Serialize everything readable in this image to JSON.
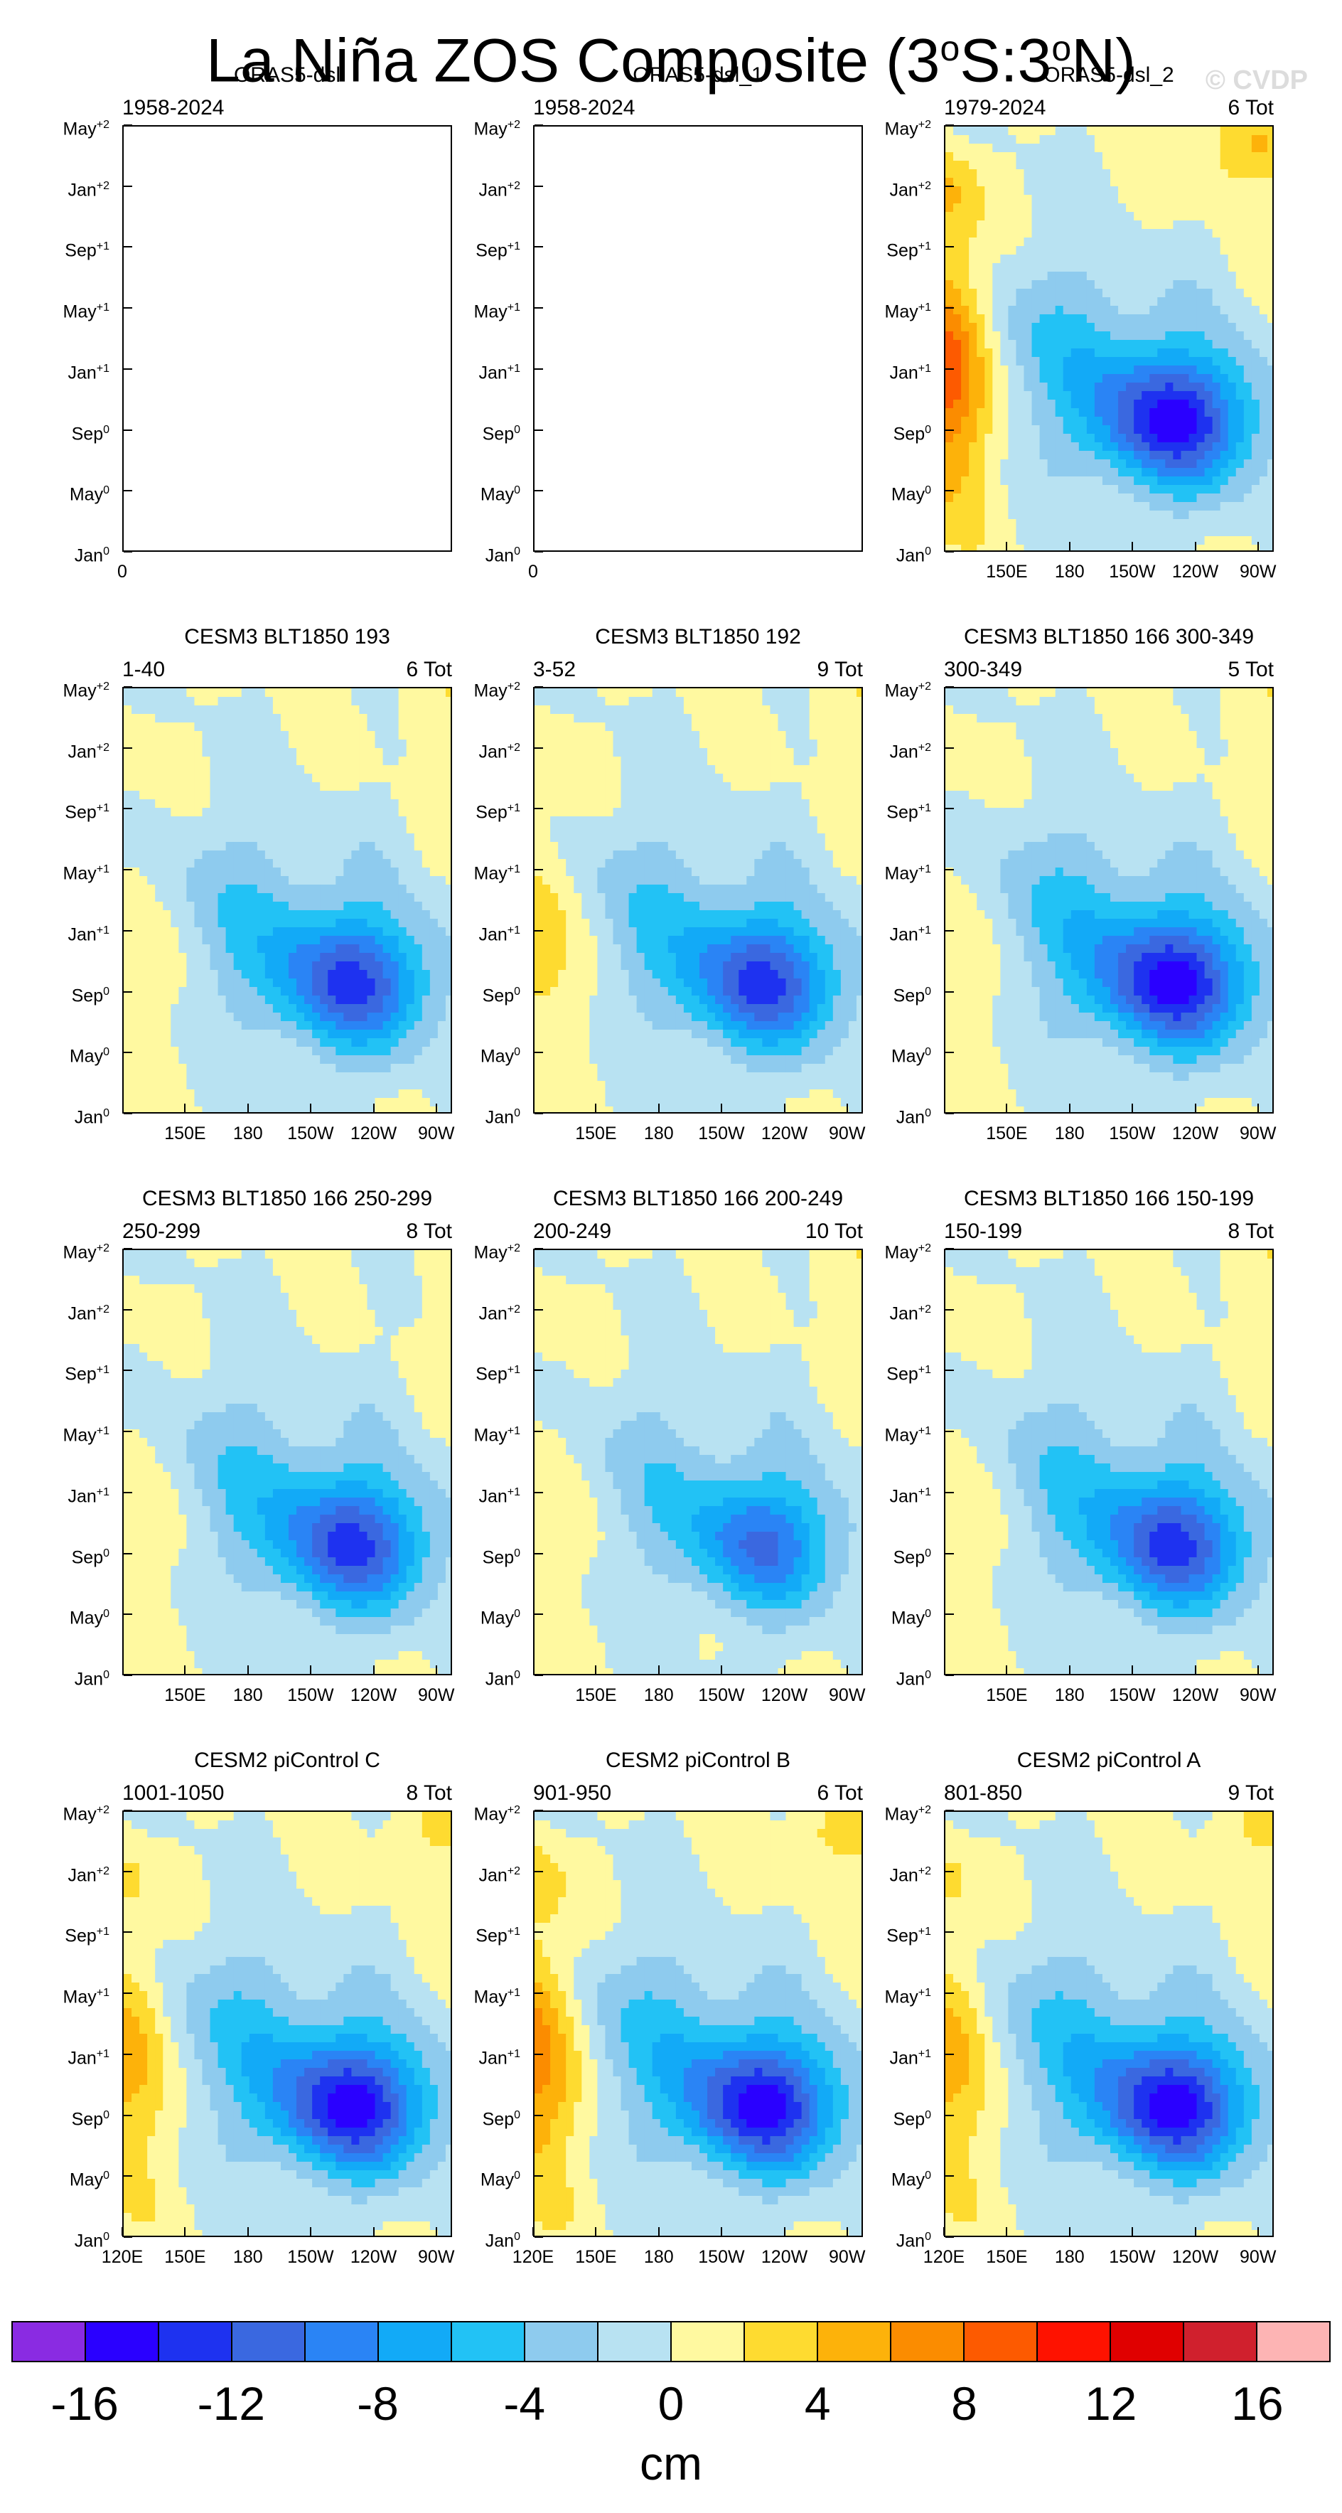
{
  "page": {
    "title": "La Niña ZOS Composite (3",
    "title_sup1": "o",
    "title_mid": "S:3",
    "title_sup2": "o",
    "title_end": "N)",
    "watermark": "© CVDP"
  },
  "colors": {
    "levels": [
      "#8a2be2",
      "#2a00ff",
      "#1e32f0",
      "#3a68e0",
      "#2a84f5",
      "#12aaf7",
      "#22c2f5",
      "#8ecbee",
      "#b8e2f2",
      "#fff9a0",
      "#fedb30",
      "#fdb20a",
      "#fb8c00",
      "#fd5a00",
      "#fe1200",
      "#e00000",
      "#d0202d",
      "#fdb4b4"
    ]
  },
  "axes": {
    "y_ticks": [
      {
        "base": "Jan",
        "sup": "0"
      },
      {
        "base": "May",
        "sup": "0"
      },
      {
        "base": "Sep",
        "sup": "0"
      },
      {
        "base": "Jan",
        "sup": "+1"
      },
      {
        "base": "May",
        "sup": "+1"
      },
      {
        "base": "Sep",
        "sup": "+1"
      },
      {
        "base": "Jan",
        "sup": "+2"
      },
      {
        "base": "May",
        "sup": "+2"
      }
    ],
    "x_ticks_inner": [
      "150E",
      "180",
      "150W",
      "120W",
      "90W"
    ],
    "x_ticks_bottom": [
      "120E",
      "150E",
      "180",
      "150W",
      "120W",
      "90W"
    ],
    "empty_x_label": "0"
  },
  "chart_data": {
    "type": "heatmap",
    "title": "La Niña ZOS Composite (3°S:3°N)",
    "x_axis": "longitude 120E–80W",
    "y_axis": "month Jan0 – May+2",
    "units": "cm",
    "colorbar": {
      "levels": [
        -16,
        -14,
        -12,
        -10,
        -8,
        -6,
        -4,
        -2,
        0,
        2,
        4,
        6,
        8,
        10,
        12,
        14,
        16
      ],
      "labels": [
        "-16",
        "-12",
        "-8",
        "-4",
        "0",
        "4",
        "8",
        "12",
        "16"
      ],
      "units_label": "cm"
    },
    "panels": [
      {
        "title": "ORAS5-dsl",
        "left": "1958-2024",
        "right": "",
        "empty": true,
        "bottom": false
      },
      {
        "title": "ORAS5-dsl_1",
        "left": "1958-2024",
        "right": "",
        "empty": true,
        "bottom": false
      },
      {
        "title": "ORAS5-dsl_2",
        "left": "1979-2024",
        "right": "6 Tot",
        "empty": false,
        "bottom": false,
        "min": -12,
        "max": 11,
        "west": 10
      },
      {
        "title": "CESM3 BLT1850 193",
        "left": "1-40",
        "right": "6 Tot",
        "empty": false,
        "bottom": false,
        "min": -10,
        "max": 4,
        "west": 2
      },
      {
        "title": "CESM3 BLT1850 192",
        "left": "3-52",
        "right": "9 Tot",
        "empty": false,
        "bottom": false,
        "min": -10,
        "max": 4,
        "west": 4
      },
      {
        "title": "CESM3 BLT1850 166 300-349",
        "left": "300-349",
        "right": "5 Tot",
        "empty": false,
        "bottom": false,
        "min": -12,
        "max": 4,
        "west": 2
      },
      {
        "title": "CESM3 BLT1850 166 250-299",
        "left": "250-299",
        "right": "8 Tot",
        "empty": false,
        "bottom": false,
        "min": -10,
        "max": 2,
        "west": 2
      },
      {
        "title": "CESM3 BLT1850 166 200-249",
        "left": "200-249",
        "right": "10 Tot",
        "empty": false,
        "bottom": false,
        "min": -8,
        "max": 4,
        "west": 2
      },
      {
        "title": "CESM3 BLT1850 166 150-199",
        "left": "150-199",
        "right": "8 Tot",
        "empty": false,
        "bottom": false,
        "min": -10,
        "max": 4,
        "west": 2
      },
      {
        "title": "CESM2 piControl C",
        "left": "1001-1050",
        "right": "8 Tot",
        "empty": false,
        "bottom": true,
        "min": -12,
        "max": 6,
        "west": 6
      },
      {
        "title": "CESM2 piControl B",
        "left": "901-950",
        "right": "6 Tot",
        "empty": false,
        "bottom": true,
        "min": -12,
        "max": 8,
        "west": 8
      },
      {
        "title": "CESM2 piControl A",
        "left": "801-850",
        "right": "9 Tot",
        "empty": false,
        "bottom": true,
        "min": -12,
        "max": 6,
        "west": 6
      }
    ]
  }
}
